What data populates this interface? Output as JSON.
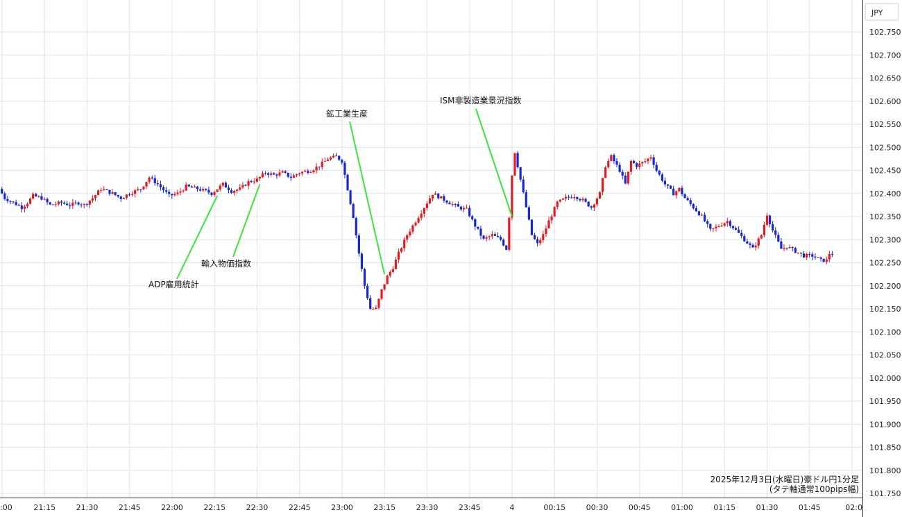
{
  "chart_data": {
    "type": "candlestick",
    "currency_label": "JPY",
    "caption_line1": "2025年12月3日(水曜日)豪ドル円1分足",
    "caption_line2": "(タテ軸通常100pips幅)",
    "ylim": [
      101.73,
      102.8
    ],
    "y_ticks": [
      "102.750",
      "102.700",
      "102.650",
      "102.600",
      "102.550",
      "102.500",
      "102.450",
      "102.400",
      "102.350",
      "102.300",
      "102.250",
      "102.200",
      "102.150",
      "102.100",
      "102.050",
      "102.000",
      "101.950",
      "101.900",
      "101.850",
      "101.800",
      "101.750"
    ],
    "x_ticks": [
      ":00",
      "21:15",
      "21:30",
      "21:45",
      "22:00",
      "22:15",
      "22:30",
      "22:45",
      "23:00",
      "23:15",
      "23:30",
      "23:45",
      "4",
      "00:15",
      "00:30",
      "00:45",
      "01:00",
      "01:15",
      "01:30",
      "01:45",
      "02:0"
    ],
    "x_start_minute": 1259,
    "minutes_per_tick": 15,
    "colors": {
      "up": "#e8191f",
      "down": "#1726d6",
      "annotation_line": "#39e639",
      "grid": "#d9e6ef"
    },
    "annotations": [
      {
        "label": "ADP雇用統計",
        "time": "22:16",
        "price": 102.395
      },
      {
        "label": "輸入物価指数",
        "time": "22:31",
        "price": 102.42
      },
      {
        "label": "鉱工業生産",
        "time": "23:15",
        "price": 102.225
      },
      {
        "label": "ISM非製造業景況指数",
        "time": "00:00",
        "price": 102.35
      }
    ],
    "price_anchors": [
      [
        "21:00",
        102.41
      ],
      [
        "21:02",
        102.39
      ],
      [
        "21:05",
        102.38
      ],
      [
        "21:08",
        102.37
      ],
      [
        "21:10",
        102.38
      ],
      [
        "21:12",
        102.395
      ],
      [
        "21:15",
        102.39
      ],
      [
        "21:18",
        102.375
      ],
      [
        "21:22",
        102.38
      ],
      [
        "21:25",
        102.375
      ],
      [
        "21:28",
        102.38
      ],
      [
        "21:30",
        102.375
      ],
      [
        "21:33",
        102.39
      ],
      [
        "21:36",
        102.41
      ],
      [
        "21:40",
        102.4
      ],
      [
        "21:43",
        102.39
      ],
      [
        "21:46",
        102.4
      ],
      [
        "21:50",
        102.41
      ],
      [
        "21:53",
        102.435
      ],
      [
        "21:56",
        102.42
      ],
      [
        "22:00",
        102.395
      ],
      [
        "22:03",
        102.4
      ],
      [
        "22:06",
        102.415
      ],
      [
        "22:10",
        102.41
      ],
      [
        "22:13",
        102.405
      ],
      [
        "22:15",
        102.4
      ],
      [
        "22:17",
        102.41
      ],
      [
        "22:19",
        102.42
      ],
      [
        "22:22",
        102.405
      ],
      [
        "22:25",
        102.41
      ],
      [
        "22:28",
        102.425
      ],
      [
        "22:31",
        102.43
      ],
      [
        "22:34",
        102.445
      ],
      [
        "22:37",
        102.44
      ],
      [
        "22:40",
        102.445
      ],
      [
        "22:43",
        102.435
      ],
      [
        "22:46",
        102.445
      ],
      [
        "22:50",
        102.45
      ],
      [
        "22:53",
        102.46
      ],
      [
        "22:56",
        102.475
      ],
      [
        "22:59",
        102.48
      ],
      [
        "23:01",
        102.47
      ],
      [
        "23:03",
        102.41
      ],
      [
        "23:05",
        102.35
      ],
      [
        "23:07",
        102.27
      ],
      [
        "23:09",
        102.2
      ],
      [
        "23:11",
        102.15
      ],
      [
        "23:13",
        102.15
      ],
      [
        "23:15",
        102.19
      ],
      [
        "23:17",
        102.22
      ],
      [
        "23:19",
        102.24
      ],
      [
        "23:21",
        102.27
      ],
      [
        "23:24",
        102.31
      ],
      [
        "23:28",
        102.35
      ],
      [
        "23:31",
        102.38
      ],
      [
        "23:33",
        102.4
      ],
      [
        "23:36",
        102.39
      ],
      [
        "23:39",
        102.38
      ],
      [
        "23:42",
        102.37
      ],
      [
        "23:45",
        102.365
      ],
      [
        "23:48",
        102.33
      ],
      [
        "23:51",
        102.3
      ],
      [
        "23:54",
        102.31
      ],
      [
        "23:57",
        102.3
      ],
      [
        "23:59",
        102.28
      ],
      [
        "00:00",
        102.35
      ],
      [
        "00:01",
        102.44
      ],
      [
        "00:02",
        102.49
      ],
      [
        "00:04",
        102.43
      ],
      [
        "00:06",
        102.37
      ],
      [
        "00:08",
        102.31
      ],
      [
        "00:10",
        102.29
      ],
      [
        "00:12",
        102.31
      ],
      [
        "00:14",
        102.34
      ],
      [
        "00:17",
        102.38
      ],
      [
        "00:20",
        102.39
      ],
      [
        "00:23",
        102.395
      ],
      [
        "00:26",
        102.385
      ],
      [
        "00:29",
        102.37
      ],
      [
        "00:32",
        102.4
      ],
      [
        "00:34",
        102.46
      ],
      [
        "00:36",
        102.48
      ],
      [
        "00:39",
        102.45
      ],
      [
        "00:41",
        102.42
      ],
      [
        "00:43",
        102.47
      ],
      [
        "00:45",
        102.46
      ],
      [
        "00:48",
        102.47
      ],
      [
        "00:50",
        102.48
      ],
      [
        "00:52",
        102.45
      ],
      [
        "00:55",
        102.42
      ],
      [
        "00:58",
        102.4
      ],
      [
        "01:00",
        102.41
      ],
      [
        "01:02",
        102.39
      ],
      [
        "01:05",
        102.37
      ],
      [
        "01:08",
        102.35
      ],
      [
        "01:11",
        102.32
      ],
      [
        "01:14",
        102.33
      ],
      [
        "01:17",
        102.34
      ],
      [
        "01:20",
        102.32
      ],
      [
        "01:23",
        102.3
      ],
      [
        "01:26",
        102.28
      ],
      [
        "01:29",
        102.31
      ],
      [
        "01:31",
        102.355
      ],
      [
        "01:33",
        102.32
      ],
      [
        "01:36",
        102.28
      ],
      [
        "01:38",
        102.285
      ],
      [
        "01:41",
        102.275
      ],
      [
        "01:44",
        102.265
      ],
      [
        "01:47",
        102.265
      ],
      [
        "01:50",
        102.255
      ],
      [
        "01:52",
        102.255
      ],
      [
        "01:53",
        102.27
      ]
    ]
  }
}
